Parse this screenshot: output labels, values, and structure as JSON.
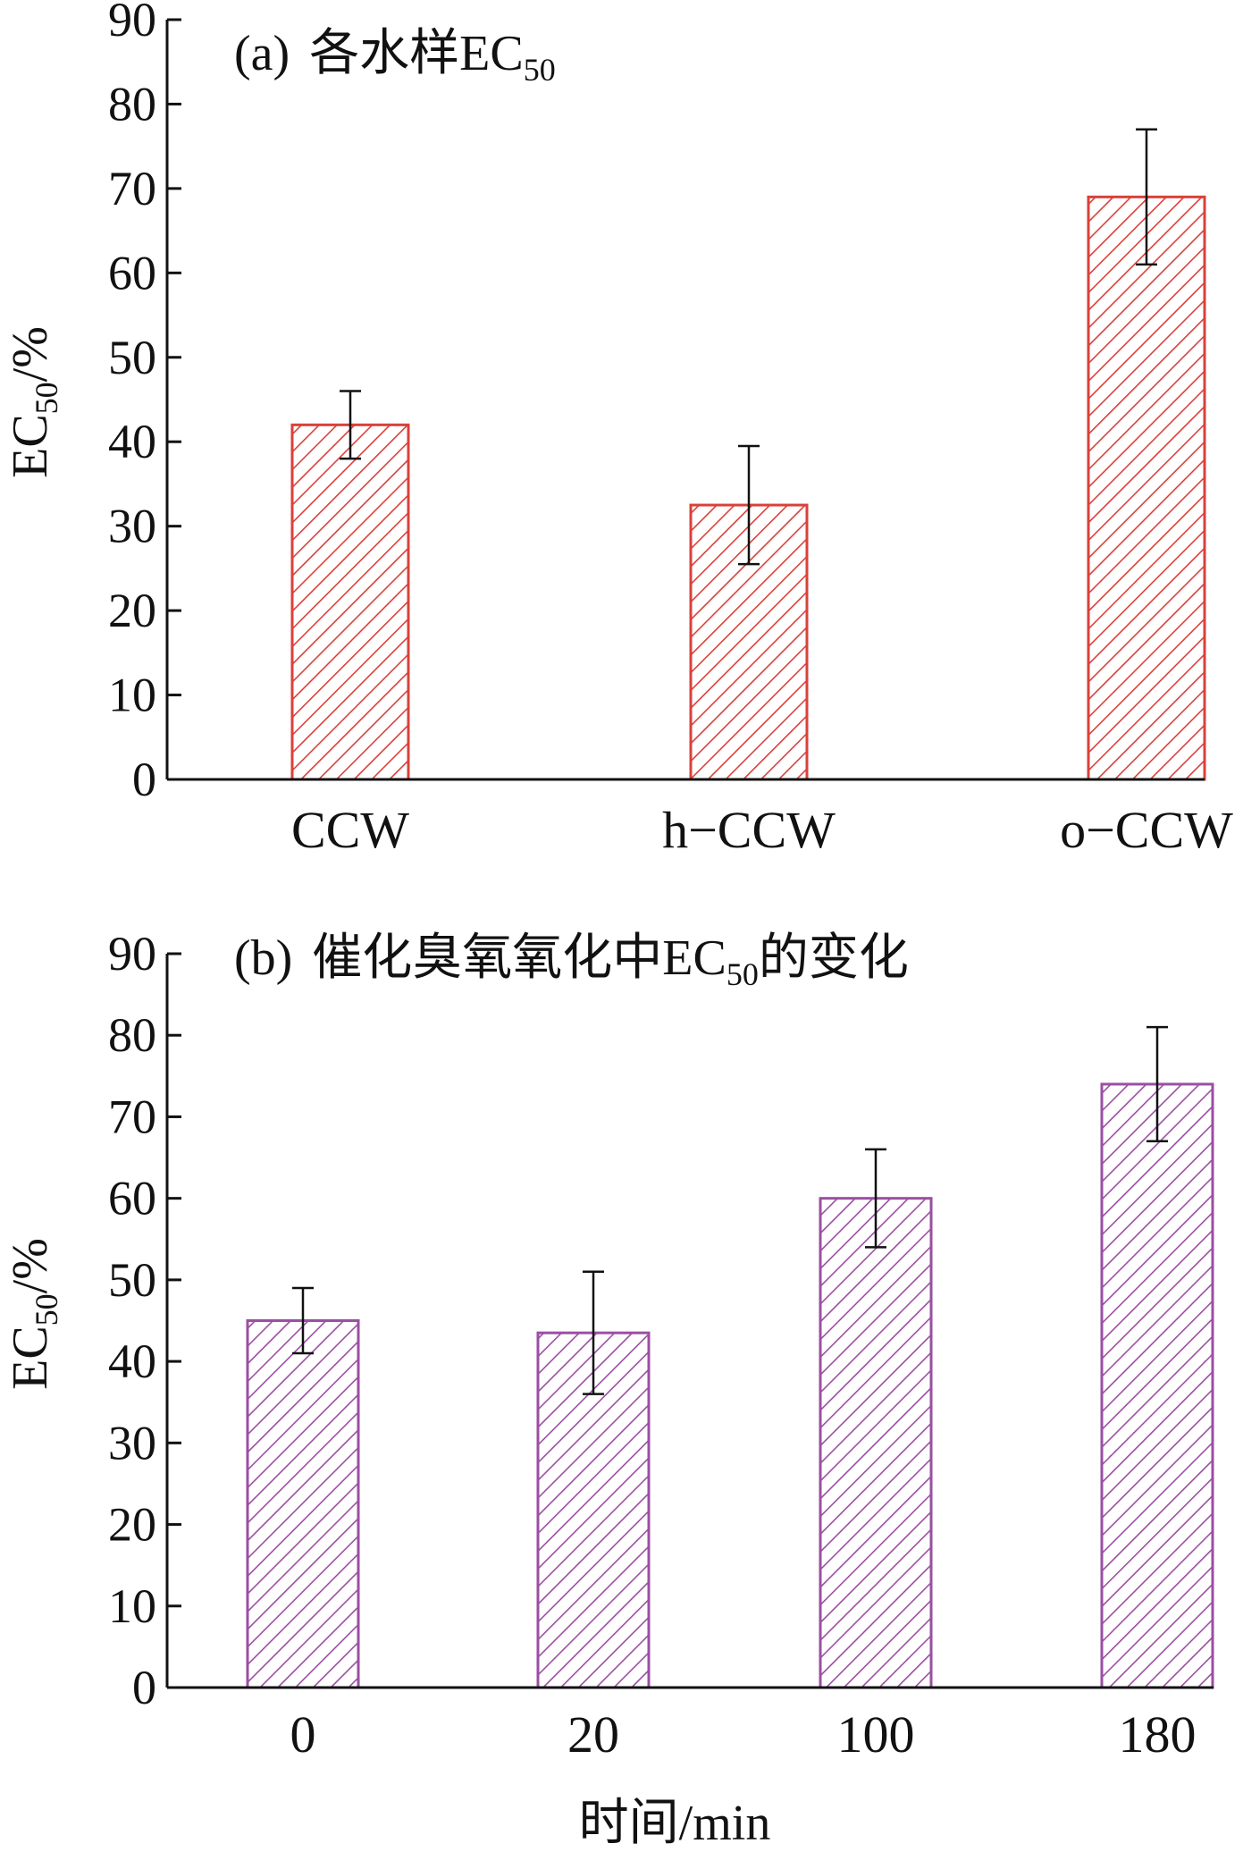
{
  "chart_data": [
    {
      "type": "bar",
      "title_prefix": "(a)",
      "title_text": "各水样EC",
      "title_sub": "50",
      "ylabel_main": "EC",
      "ylabel_sub": "50",
      "ylabel_suffix": "/%",
      "xlabel": "",
      "ylim": [
        0,
        90
      ],
      "yticks": [
        0,
        10,
        20,
        30,
        40,
        50,
        60,
        70,
        80,
        90
      ],
      "categories": [
        "CCW",
        "h−CCW",
        "o−CCW"
      ],
      "values": [
        42,
        32.5,
        69
      ],
      "errors": [
        4,
        7,
        8
      ],
      "color": "#d9413a",
      "pattern": "diagonal-hatch",
      "grid": false
    },
    {
      "type": "bar",
      "title_prefix": "(b)",
      "title_text": "催化臭氧氧化中EC",
      "title_sub": "50",
      "title_tail": "的变化",
      "ylabel_main": "EC",
      "ylabel_sub": "50",
      "ylabel_suffix": "/%",
      "xlabel": "时间/min",
      "ylim": [
        0,
        90
      ],
      "yticks": [
        0,
        10,
        20,
        30,
        40,
        50,
        60,
        70,
        80,
        90
      ],
      "categories": [
        "0",
        "20",
        "100",
        "180"
      ],
      "values": [
        45,
        43.5,
        60,
        74
      ],
      "errors": [
        4,
        7.5,
        6,
        7
      ],
      "color": "#9b4fa2",
      "pattern": "diagonal-hatch",
      "grid": false
    }
  ]
}
